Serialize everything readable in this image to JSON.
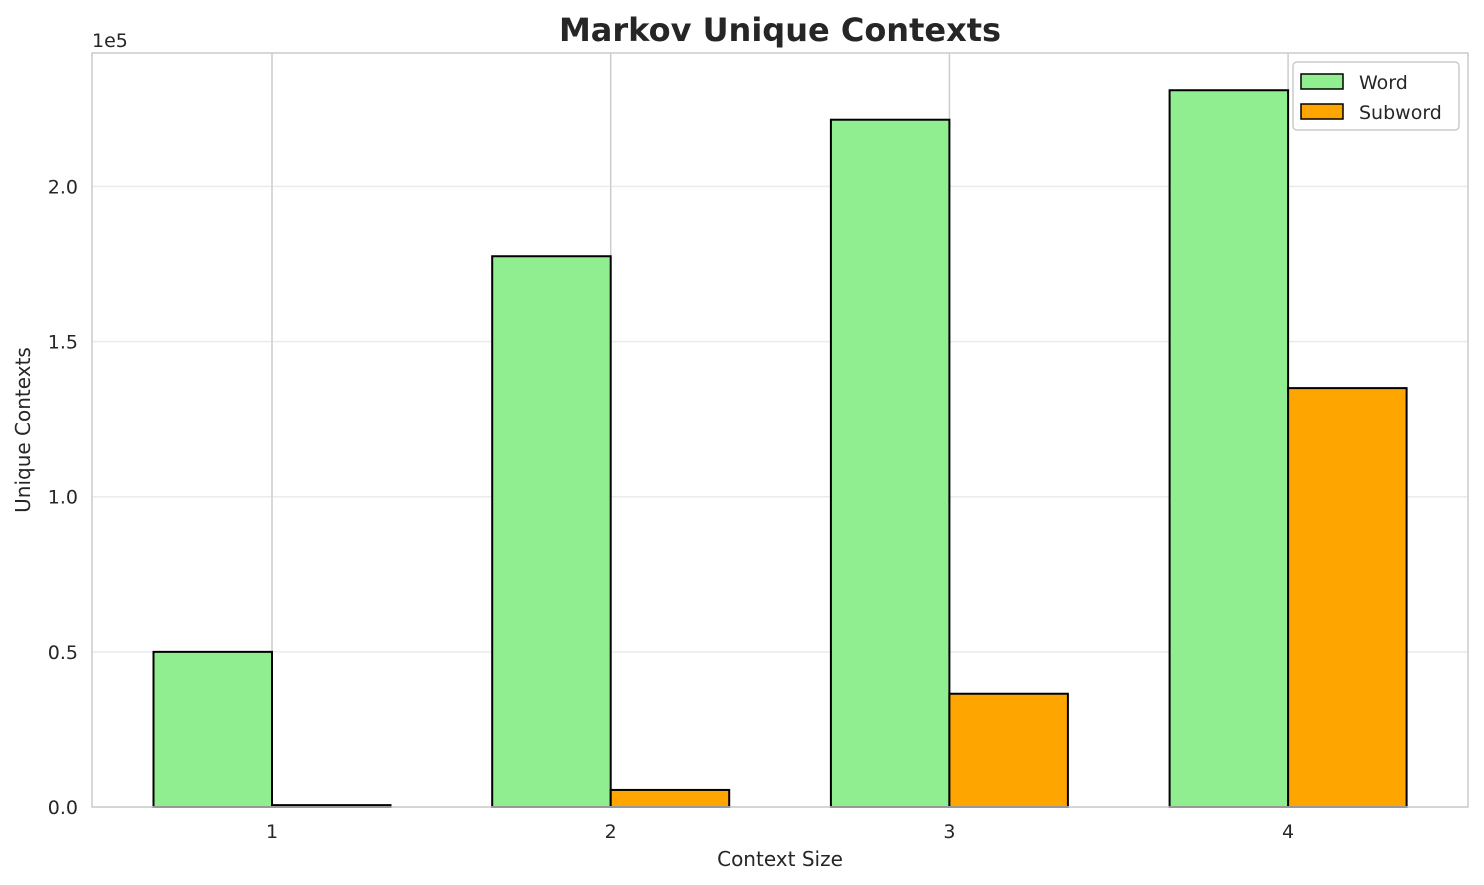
{
  "chart_data": {
    "type": "bar",
    "title": "Markov Unique Contexts",
    "xlabel": "Context Size",
    "ylabel": "Unique Contexts",
    "categories": [
      "1",
      "2",
      "3",
      "4"
    ],
    "series": [
      {
        "name": "Word",
        "values": [
          50000,
          177500,
          221500,
          231000
        ],
        "color": "#90ee90"
      },
      {
        "name": "Subword",
        "values": [
          600,
          5500,
          36500,
          135000
        ],
        "color": "#ffa500"
      }
    ],
    "ylim": [
      0,
      243000
    ],
    "yticks": [
      0,
      50000,
      100000,
      150000,
      200000
    ],
    "ytick_labels": [
      "0.0",
      "0.5",
      "1.0",
      "1.5",
      "2.0"
    ],
    "y_offset_label": "1e5",
    "grid": true,
    "legend_position": "top-right"
  }
}
